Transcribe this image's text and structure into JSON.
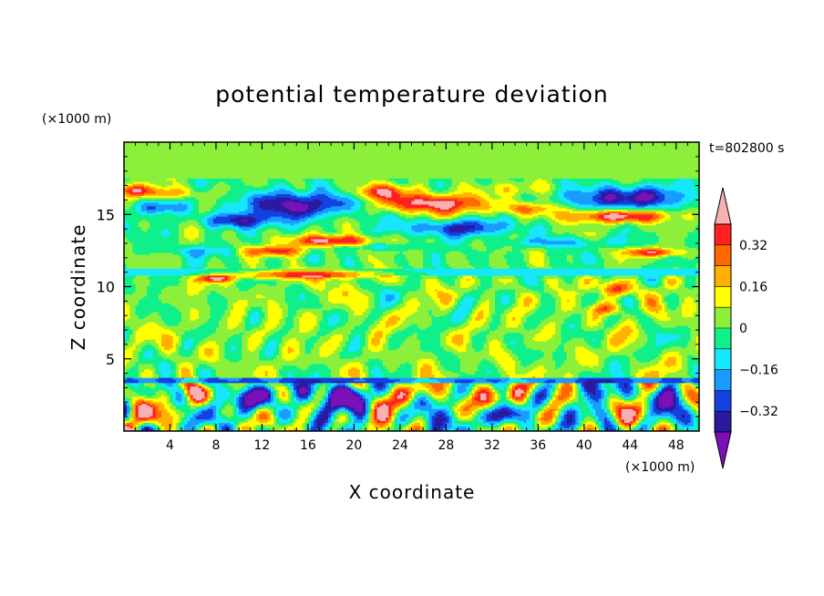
{
  "chart_data": {
    "type": "heatmap",
    "title": "potential temperature deviation",
    "xlabel": "X coordinate",
    "ylabel": "Z coordinate",
    "x_unit": "(×1000 m)",
    "y_unit": "(×1000 m)",
    "time_label": "t=802800 s",
    "xlim": [
      0,
      50
    ],
    "ylim": [
      0,
      20
    ],
    "x_ticks": [
      4,
      8,
      12,
      16,
      20,
      24,
      28,
      32,
      36,
      40,
      44,
      48
    ],
    "y_ticks": [
      5,
      10,
      15
    ],
    "colorbar": {
      "tick_labels": [
        {
          "value": 0.32,
          "label": "0.32"
        },
        {
          "value": 0.16,
          "label": "0.16"
        },
        {
          "value": 0,
          "label": "0"
        },
        {
          "value": -0.16,
          "label": "−0.16"
        },
        {
          "value": -0.32,
          "label": "−0.32"
        }
      ],
      "levels": [
        -0.4,
        -0.32,
        -0.24,
        -0.16,
        -0.08,
        0,
        0.08,
        0.16,
        0.24,
        0.32,
        0.4
      ],
      "colors": [
        "#7a10b8",
        "#2a1aa0",
        "#1440e0",
        "#1a9cff",
        "#17e6ff",
        "#10f08a",
        "#8cf03a",
        "#ffff00",
        "#ffb000",
        "#ff6a00",
        "#ff2020",
        "#f8b0b0"
      ],
      "extend": "both"
    },
    "features": [
      {
        "kind": "band",
        "xmin": 0,
        "xmax": 50,
        "zmin": 10.8,
        "zmax": 11.3,
        "value": -0.12
      },
      {
        "kind": "band",
        "xmin": 0,
        "xmax": 50,
        "zmin": 17.5,
        "zmax": 20,
        "value": 0.04
      },
      {
        "kind": "band",
        "xmin": 0,
        "xmax": 50,
        "zmin": 3.4,
        "zmax": 3.7,
        "value": -0.28
      },
      {
        "kind": "blob",
        "x": 15,
        "z": 15.7,
        "rx": 5.5,
        "rz": 1.1,
        "value": -0.38
      },
      {
        "kind": "blob",
        "x": 10,
        "z": 14.6,
        "rx": 3.5,
        "rz": 0.6,
        "value": -0.3
      },
      {
        "kind": "blob",
        "x": 27,
        "z": 15.8,
        "rx": 5,
        "rz": 0.8,
        "value": 0.42
      },
      {
        "kind": "blob",
        "x": 22,
        "z": 16.6,
        "rx": 3,
        "rz": 0.6,
        "value": 0.28
      },
      {
        "kind": "blob",
        "x": 29,
        "z": 14.1,
        "rx": 5,
        "rz": 0.7,
        "value": -0.3
      },
      {
        "kind": "blob",
        "x": 44,
        "z": 16.2,
        "rx": 6,
        "rz": 0.9,
        "value": -0.36
      },
      {
        "kind": "blob",
        "x": 43,
        "z": 14.9,
        "rx": 5,
        "rz": 0.5,
        "value": 0.42
      },
      {
        "kind": "blob",
        "x": 35,
        "z": 15.4,
        "rx": 3,
        "rz": 0.5,
        "value": 0.22
      },
      {
        "kind": "blob",
        "x": 18,
        "z": 13.2,
        "rx": 4,
        "rz": 0.45,
        "value": 0.4
      },
      {
        "kind": "blob",
        "x": 13,
        "z": 12.5,
        "rx": 3,
        "rz": 0.4,
        "value": 0.32
      },
      {
        "kind": "blob",
        "x": 16,
        "z": 10.9,
        "rx": 7,
        "rz": 0.35,
        "value": 0.42
      },
      {
        "kind": "blob",
        "x": 8,
        "z": 10.6,
        "rx": 2,
        "rz": 0.3,
        "value": 0.3
      },
      {
        "kind": "blob",
        "x": 46,
        "z": 12.4,
        "rx": 3,
        "rz": 0.35,
        "value": 0.32
      },
      {
        "kind": "blob",
        "x": 43,
        "z": 9.9,
        "rx": 1.5,
        "rz": 0.6,
        "value": 0.32
      },
      {
        "kind": "blob",
        "x": 42,
        "z": 8.5,
        "rx": 1.5,
        "rz": 0.5,
        "value": 0.24
      },
      {
        "kind": "blob",
        "x": 22,
        "z": 12.8,
        "rx": 4,
        "rz": 0.3,
        "value": -0.12
      },
      {
        "kind": "blob",
        "x": 38,
        "z": 13.1,
        "rx": 6,
        "rz": 0.4,
        "value": -0.14
      },
      {
        "kind": "blob",
        "x": 6,
        "z": 12.5,
        "rx": 5,
        "rz": 0.4,
        "value": -0.1
      },
      {
        "kind": "blob",
        "x": 3,
        "z": 15.5,
        "rx": 2.5,
        "rz": 0.6,
        "value": -0.22
      },
      {
        "kind": "blob",
        "x": 4,
        "z": 16.5,
        "rx": 3,
        "rz": 0.5,
        "value": 0.2
      },
      {
        "kind": "blob",
        "x": 1,
        "z": 16.7,
        "rx": 1.5,
        "rz": 0.5,
        "value": 0.3
      },
      {
        "kind": "blob",
        "x": 34,
        "z": 16.8,
        "rx": 4,
        "rz": 0.5,
        "value": 0.1
      },
      {
        "kind": "blob",
        "x": 19,
        "z": 2.2,
        "rx": 2.5,
        "rz": 1.2,
        "value": -0.34
      },
      {
        "kind": "blob",
        "x": 16,
        "z": 2.6,
        "rx": 1.5,
        "rz": 0.9,
        "value": -0.3
      },
      {
        "kind": "blob",
        "x": 11,
        "z": 2.4,
        "rx": 1.5,
        "rz": 0.9,
        "value": -0.28
      },
      {
        "kind": "blob",
        "x": 33,
        "z": 1.2,
        "rx": 2,
        "rz": 0.8,
        "value": -0.34
      },
      {
        "kind": "blob",
        "x": 41.5,
        "z": 2.6,
        "rx": 1.5,
        "rz": 1.0,
        "value": -0.34
      },
      {
        "kind": "blob",
        "x": 47.5,
        "z": 2.3,
        "rx": 1.2,
        "rz": 1.0,
        "value": -0.3
      },
      {
        "kind": "blob",
        "x": 6,
        "z": 2.8,
        "rx": 1.1,
        "rz": 0.9,
        "value": 0.36
      },
      {
        "kind": "blob",
        "x": 34,
        "z": 2.6,
        "rx": 1.2,
        "rz": 1.0,
        "value": 0.4
      },
      {
        "kind": "blob",
        "x": 26,
        "z": 2.8,
        "rx": 1.5,
        "rz": 0.8,
        "value": 0.32
      },
      {
        "kind": "blob",
        "x": 31,
        "z": 1.8,
        "rx": 1.4,
        "rz": 1.3,
        "value": 0.2
      },
      {
        "kind": "blob",
        "x": 23,
        "z": 1.5,
        "rx": 1.5,
        "rz": 1.2,
        "value": 0.24
      },
      {
        "kind": "blob",
        "x": 1.5,
        "z": 1.5,
        "rx": 1.5,
        "rz": 1.2,
        "value": 0.26
      },
      {
        "kind": "blob",
        "x": 45,
        "z": 1.8,
        "rx": 1.5,
        "rz": 1.2,
        "value": 0.22
      },
      {
        "kind": "blob",
        "x": 38,
        "z": 2.2,
        "rx": 1.5,
        "rz": 1.0,
        "value": 0.12
      },
      {
        "kind": "blob",
        "x": 28,
        "z": 1.0,
        "rx": 2,
        "rz": 0.8,
        "value": -0.18
      },
      {
        "kind": "blob",
        "x": 8.5,
        "z": 2.0,
        "rx": 1.2,
        "rz": 1.0,
        "value": -0.14
      }
    ]
  }
}
